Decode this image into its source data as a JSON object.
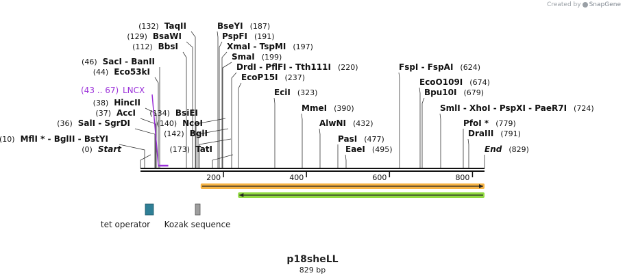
{
  "credit": {
    "prefix": "Created by",
    "brand": "SnapGene"
  },
  "map": {
    "name": "p18sheLL",
    "length_label": "829 bp",
    "length": 829
  },
  "axis_ticks": [
    {
      "value": 200,
      "label": "200"
    },
    {
      "value": 400,
      "label": "400"
    },
    {
      "value": 600,
      "label": "600"
    },
    {
      "value": 800,
      "label": "800"
    }
  ],
  "sites": [
    {
      "name": "Start",
      "pos": 0,
      "pos_text": "(0)",
      "italic": true
    },
    {
      "name": "MflI * - BglII - BstYI",
      "pos": 10,
      "pos_text": "(10)"
    },
    {
      "name": "SalI - SgrDI",
      "pos": 36,
      "pos_text": "(36)"
    },
    {
      "name": "AccI",
      "pos": 37,
      "pos_text": "(37)"
    },
    {
      "name": "HincII",
      "pos": 38,
      "pos_text": "(38)"
    },
    {
      "name": "Eco53kI",
      "pos": 44,
      "pos_text": "(44)"
    },
    {
      "name": "SacI - BanII",
      "pos": 46,
      "pos_text": "(46)"
    },
    {
      "name": "BbsI",
      "pos": 112,
      "pos_text": "(112)"
    },
    {
      "name": "BsaWI",
      "pos": 129,
      "pos_text": "(129)"
    },
    {
      "name": "TaqII",
      "pos": 132,
      "pos_text": "(132)"
    },
    {
      "name": "BsiEI",
      "pos": 134,
      "pos_text": "(134)"
    },
    {
      "name": "NcoI",
      "pos": 140,
      "pos_text": "(140)"
    },
    {
      "name": "BglI",
      "pos": 142,
      "pos_text": "(142)"
    },
    {
      "name": "TatI",
      "pos": 173,
      "pos_text": "(173)"
    },
    {
      "name": "BseYI",
      "pos": 187,
      "pos_text": "(187)"
    },
    {
      "name": "PspFI",
      "pos": 191,
      "pos_text": "(191)"
    },
    {
      "name": "XmaI - TspMI",
      "pos": 197,
      "pos_text": "(197)"
    },
    {
      "name": "SmaI",
      "pos": 199,
      "pos_text": "(199)"
    },
    {
      "name": "DrdI - PflFI - Tth111I",
      "pos": 220,
      "pos_text": "(220)"
    },
    {
      "name": "EcoP15I",
      "pos": 237,
      "pos_text": "(237)"
    },
    {
      "name": "EciI",
      "pos": 323,
      "pos_text": "(323)"
    },
    {
      "name": "MmeI",
      "pos": 390,
      "pos_text": "(390)"
    },
    {
      "name": "AlwNI",
      "pos": 432,
      "pos_text": "(432)"
    },
    {
      "name": "PasI",
      "pos": 477,
      "pos_text": "(477)"
    },
    {
      "name": "EaeI",
      "pos": 495,
      "pos_text": "(495)"
    },
    {
      "name": "FspI - FspAI",
      "pos": 624,
      "pos_text": "(624)"
    },
    {
      "name": "EcoO109I",
      "pos": 674,
      "pos_text": "(674)"
    },
    {
      "name": "Bpu10I",
      "pos": 679,
      "pos_text": "(679)"
    },
    {
      "name": "SmlI - XhoI - PspXI - PaeR7I",
      "pos": 724,
      "pos_text": "(724)"
    },
    {
      "name": "PfoI *",
      "pos": 779,
      "pos_text": "(779)"
    },
    {
      "name": "DraIII",
      "pos": 791,
      "pos_text": "(791)"
    },
    {
      "name": "End",
      "pos": 829,
      "pos_text": "(829)",
      "italic": true
    }
  ],
  "feature_label": {
    "name": "LNCX",
    "range_text": "(43 .. 67)",
    "start": 43,
    "end": 67,
    "color": "#9b30d9"
  },
  "arrows": [
    {
      "name": "orange-forward",
      "start": 145,
      "end": 829,
      "direction": "forward",
      "color": "#f5a623"
    },
    {
      "name": "green-reverse",
      "start": 235,
      "end": 829,
      "direction": "reverse",
      "color": "#7ed321"
    }
  ],
  "legend": [
    {
      "label": "tet operator",
      "color": "#2f7f96"
    },
    {
      "label": "Kozak sequence",
      "color": "#9e9e9e"
    }
  ]
}
